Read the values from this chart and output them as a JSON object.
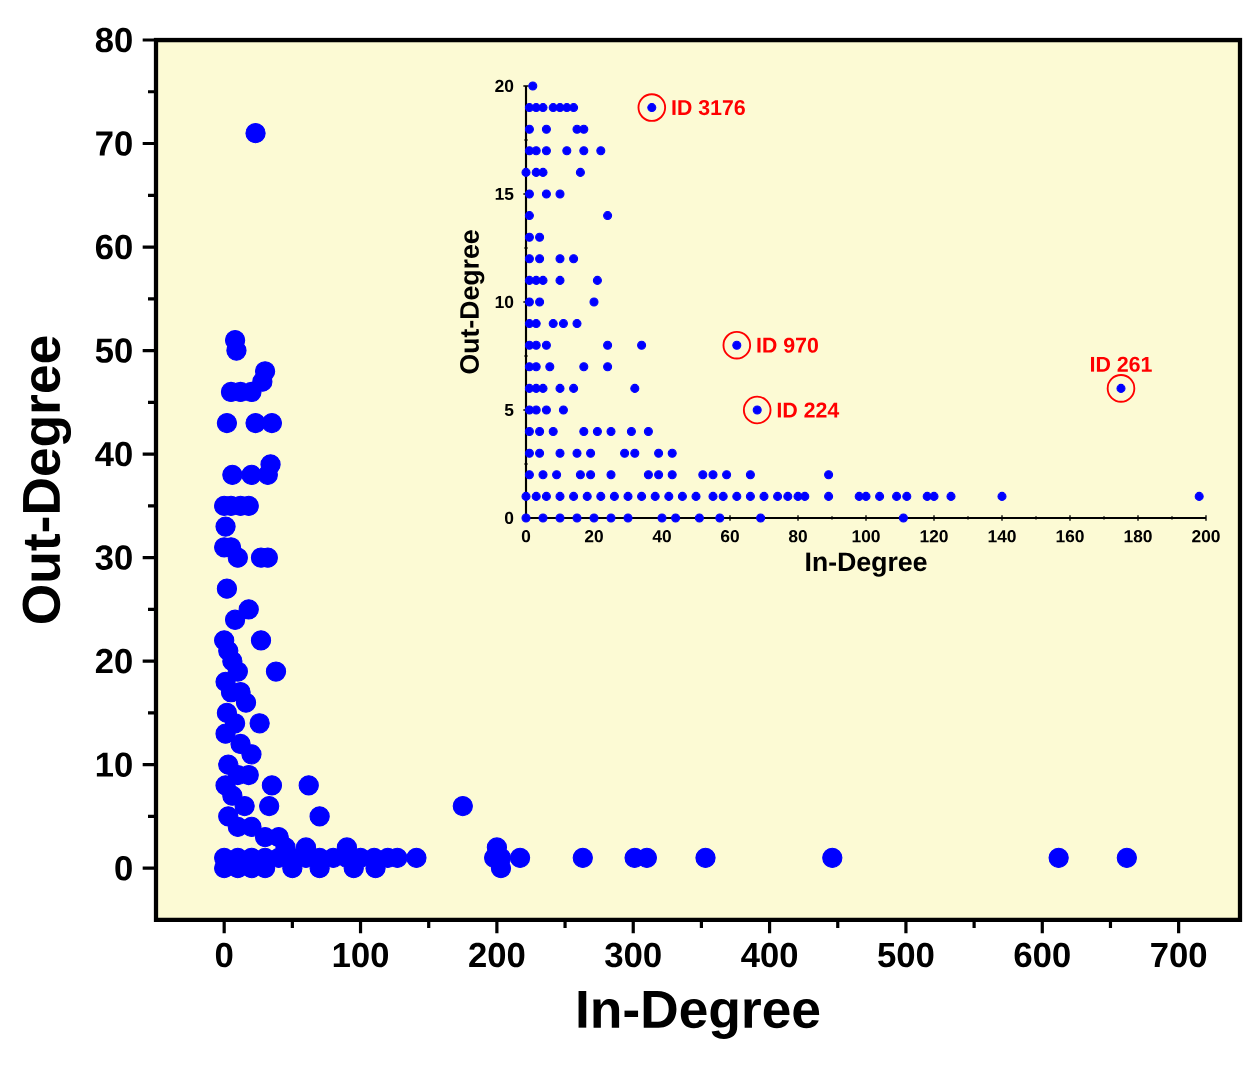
{
  "chart_data": [
    {
      "type": "scatter",
      "xlabel": "In-Degree",
      "ylabel": "Out-Degree",
      "color": "#0000ff",
      "x": [
        23,
        8,
        9,
        5,
        12,
        20,
        30,
        28,
        2,
        23,
        35,
        6,
        20,
        34,
        32,
        0,
        5,
        12,
        18,
        1,
        0,
        5,
        10,
        27,
        32,
        2,
        8,
        18,
        27,
        38,
        0,
        3,
        6,
        10,
        1,
        5,
        12,
        16,
        2,
        8,
        26,
        1,
        12,
        20,
        3,
        10,
        18,
        1,
        35,
        62,
        6,
        15,
        33,
        70,
        175,
        3,
        10,
        20,
        30,
        40,
        45,
        60,
        90,
        0,
        10,
        20,
        30,
        40,
        50,
        60,
        70,
        80,
        90,
        100,
        110,
        120,
        127,
        141,
        198,
        203,
        217,
        263,
        301,
        310,
        353,
        446,
        612,
        662,
        200,
        203,
        0,
        10,
        20,
        30,
        50,
        70,
        95,
        111
      ],
      "values": [
        71,
        51,
        50,
        46,
        46,
        46,
        48,
        47,
        43,
        43,
        43,
        38,
        38,
        39,
        38,
        35,
        35,
        35,
        35,
        33,
        31,
        31,
        30,
        30,
        30,
        27,
        24,
        25,
        22,
        19,
        22,
        21,
        20,
        19,
        18,
        17,
        17,
        16,
        15,
        14,
        14,
        13,
        12,
        11,
        10,
        9,
        9,
        8,
        8,
        8,
        7,
        6,
        6,
        5,
        6,
        5,
        4,
        4,
        3,
        3,
        2,
        2,
        2,
        1,
        1,
        1,
        1,
        1,
        1,
        1,
        1,
        1,
        1,
        1,
        1,
        1,
        1,
        1,
        1,
        1,
        1,
        1,
        1,
        1,
        1,
        1,
        1,
        1,
        2,
        0,
        0,
        0,
        0,
        0,
        0,
        0,
        0,
        0
      ],
      "xlim": [
        -50,
        745
      ],
      "ylim": [
        -5,
        80
      ],
      "xticks": [
        0,
        100,
        200,
        300,
        400,
        500,
        600,
        700
      ],
      "yticks": [
        0,
        10,
        20,
        30,
        40,
        50,
        60,
        70,
        80
      ]
    },
    {
      "type": "scatter",
      "xlabel": "In-Degree",
      "ylabel": "Out-Degree",
      "color": "#0000ff",
      "x": [
        2,
        1,
        3,
        5,
        8,
        10,
        12,
        14,
        37,
        1,
        6,
        15,
        17,
        1,
        3,
        6,
        12,
        17,
        22,
        0,
        3,
        5,
        16,
        1,
        6,
        10,
        1,
        24,
        1,
        4,
        1,
        4,
        10,
        14,
        1,
        3,
        5,
        10,
        21,
        1,
        4,
        20,
        1,
        3,
        8,
        11,
        15,
        1,
        3,
        6,
        24,
        34,
        62,
        1,
        3,
        7,
        17,
        24,
        1,
        3,
        5,
        10,
        14,
        32,
        175,
        1,
        3,
        6,
        11,
        68,
        1,
        4,
        8,
        17,
        21,
        25,
        31,
        36,
        1,
        4,
        10,
        15,
        19,
        29,
        32,
        39,
        43,
        1,
        5,
        9,
        16,
        19,
        25,
        36,
        39,
        43,
        52,
        55,
        59,
        66,
        89,
        0,
        3,
        6,
        10,
        14,
        18,
        22,
        26,
        30,
        34,
        38,
        42,
        46,
        50,
        55,
        58,
        62,
        66,
        70,
        74,
        77,
        80,
        82,
        89,
        98,
        100,
        104,
        109,
        112,
        118,
        120,
        125,
        140,
        198,
        0,
        5,
        10,
        15,
        20,
        25,
        30,
        40,
        44,
        51,
        57,
        69,
        111
      ],
      "values": [
        20,
        19,
        19,
        19,
        19,
        19,
        19,
        19,
        19,
        18,
        18,
        18,
        18,
        17,
        17,
        17,
        17,
        17,
        17,
        16,
        16,
        16,
        16,
        15,
        15,
        15,
        14,
        14,
        13,
        13,
        12,
        12,
        12,
        12,
        11,
        11,
        11,
        11,
        11,
        10,
        10,
        10,
        9,
        9,
        9,
        9,
        9,
        8,
        8,
        8,
        8,
        8,
        8,
        7,
        7,
        7,
        7,
        7,
        6,
        6,
        6,
        6,
        6,
        6,
        6,
        5,
        5,
        5,
        5,
        5,
        4,
        4,
        4,
        4,
        4,
        4,
        4,
        4,
        3,
        3,
        3,
        3,
        3,
        3,
        3,
        3,
        3,
        2,
        2,
        2,
        2,
        2,
        2,
        2,
        2,
        2,
        2,
        2,
        2,
        2,
        2,
        1,
        1,
        1,
        1,
        1,
        1,
        1,
        1,
        1,
        1,
        1,
        1,
        1,
        1,
        1,
        1,
        1,
        1,
        1,
        1,
        1,
        1,
        1,
        1,
        1,
        1,
        1,
        1,
        1,
        1,
        1,
        1,
        1,
        1,
        0,
        0,
        0,
        0,
        0,
        0,
        0,
        0,
        0,
        0,
        0,
        0,
        0
      ],
      "xlim": [
        0,
        200
      ],
      "ylim": [
        0,
        20
      ],
      "xticks": [
        0,
        20,
        40,
        60,
        80,
        100,
        120,
        140,
        160,
        180,
        200
      ],
      "yticks": [
        0,
        5,
        10,
        15,
        20
      ],
      "annotations": [
        {
          "text": "ID 3176",
          "x": 37,
          "y": 19
        },
        {
          "text": "ID 970",
          "x": 62,
          "y": 8
        },
        {
          "text": "ID 224",
          "x": 68,
          "y": 5
        },
        {
          "text": "ID 261",
          "x": 175,
          "y": 6
        }
      ]
    }
  ]
}
